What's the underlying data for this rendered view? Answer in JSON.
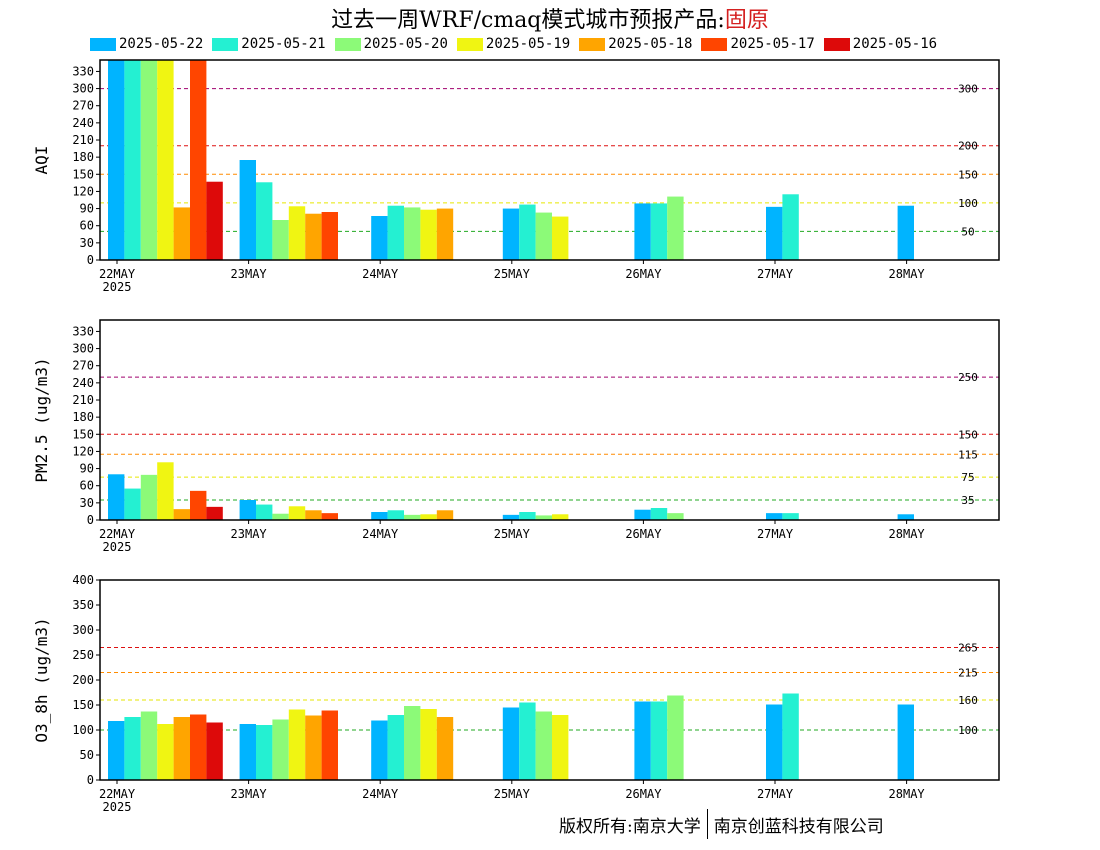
{
  "title": {
    "text": "过去一周WRF/cmaq模式城市预报产品:",
    "location": "固原",
    "location_color": "#d42020"
  },
  "footer": {
    "left": "版权所有:南京大学",
    "right": "南京创蓝科技有限公司"
  },
  "chart_data": [
    {
      "type": "bar",
      "ylabel": "AQI",
      "ylim": [
        0,
        350
      ],
      "yticks": [
        0,
        30,
        60,
        90,
        120,
        150,
        180,
        210,
        240,
        270,
        300,
        330
      ],
      "categories": [
        "22MAY",
        "23MAY",
        "24MAY",
        "25MAY",
        "26MAY",
        "27MAY",
        "28MAY"
      ],
      "first_category_sublabel": "2025",
      "thresholds": [
        {
          "value": 50,
          "label": "50",
          "color": "#22aa22"
        },
        {
          "value": 100,
          "label": "100",
          "color": "#e6e600"
        },
        {
          "value": 150,
          "label": "150",
          "color": "#ff8c00"
        },
        {
          "value": 200,
          "label": "200",
          "color": "#dd1111"
        },
        {
          "value": 300,
          "label": "300",
          "color": "#a0006e"
        }
      ],
      "series": [
        {
          "name": "2025-05-22",
          "color": "#00b4ff",
          "values": [
            350,
            175,
            77,
            90,
            99,
            93,
            95
          ]
        },
        {
          "name": "2025-05-21",
          "color": "#24f0d2",
          "values": [
            350,
            136,
            95,
            97,
            99,
            115,
            null
          ]
        },
        {
          "name": "2025-05-20",
          "color": "#8cfa78",
          "values": [
            350,
            70,
            92,
            83,
            111,
            null,
            null
          ]
        },
        {
          "name": "2025-05-19",
          "color": "#f0f512",
          "values": [
            350,
            94,
            88,
            76,
            null,
            null,
            null
          ]
        },
        {
          "name": "2025-05-18",
          "color": "#ffa500",
          "values": [
            92,
            81,
            90,
            null,
            null,
            null,
            null
          ]
        },
        {
          "name": "2025-05-17",
          "color": "#ff4500",
          "values": [
            350,
            84,
            null,
            null,
            null,
            null,
            null
          ]
        },
        {
          "name": "2025-05-16",
          "color": "#dd0a0a",
          "values": [
            137,
            null,
            null,
            null,
            null,
            null,
            null
          ]
        }
      ]
    },
    {
      "type": "bar",
      "ylabel": "PM2.5 (ug/m3)",
      "ylim": [
        0,
        350
      ],
      "yticks": [
        0,
        30,
        60,
        90,
        120,
        150,
        180,
        210,
        240,
        270,
        300,
        330
      ],
      "categories": [
        "22MAY",
        "23MAY",
        "24MAY",
        "25MAY",
        "26MAY",
        "27MAY",
        "28MAY"
      ],
      "first_category_sublabel": "2025",
      "thresholds": [
        {
          "value": 35,
          "label": "35",
          "color": "#22aa22"
        },
        {
          "value": 75,
          "label": "75",
          "color": "#e6e600"
        },
        {
          "value": 115,
          "label": "115",
          "color": "#ff8c00"
        },
        {
          "value": 150,
          "label": "150",
          "color": "#dd1111"
        },
        {
          "value": 250,
          "label": "250",
          "color": "#a0006e"
        }
      ],
      "series": [
        {
          "name": "2025-05-22",
          "color": "#00b4ff",
          "values": [
            80,
            35,
            14,
            9,
            18,
            12,
            10
          ]
        },
        {
          "name": "2025-05-21",
          "color": "#24f0d2",
          "values": [
            55,
            27,
            17,
            14,
            21,
            12,
            null
          ]
        },
        {
          "name": "2025-05-20",
          "color": "#8cfa78",
          "values": [
            79,
            11,
            9,
            8,
            12,
            null,
            null
          ]
        },
        {
          "name": "2025-05-19",
          "color": "#f0f512",
          "values": [
            101,
            24,
            10,
            10,
            null,
            null,
            null
          ]
        },
        {
          "name": "2025-05-18",
          "color": "#ffa500",
          "values": [
            19,
            17,
            17,
            null,
            null,
            null,
            null
          ]
        },
        {
          "name": "2025-05-17",
          "color": "#ff4500",
          "values": [
            51,
            12,
            null,
            null,
            null,
            null,
            null
          ]
        },
        {
          "name": "2025-05-16",
          "color": "#dd0a0a",
          "values": [
            23,
            null,
            null,
            null,
            null,
            null,
            null
          ]
        }
      ]
    },
    {
      "type": "bar",
      "ylabel": "O3_8h (ug/m3)",
      "ylim": [
        0,
        400
      ],
      "yticks": [
        0,
        50,
        100,
        150,
        200,
        250,
        300,
        350,
        400
      ],
      "categories": [
        "22MAY",
        "23MAY",
        "24MAY",
        "25MAY",
        "26MAY",
        "27MAY",
        "28MAY"
      ],
      "first_category_sublabel": "2025",
      "thresholds": [
        {
          "value": 100,
          "label": "100",
          "color": "#22aa22"
        },
        {
          "value": 160,
          "label": "160",
          "color": "#e6e600"
        },
        {
          "value": 215,
          "label": "215",
          "color": "#ff8c00"
        },
        {
          "value": 265,
          "label": "265",
          "color": "#dd1111"
        }
      ],
      "series": [
        {
          "name": "2025-05-22",
          "color": "#00b4ff",
          "values": [
            118,
            112,
            119,
            145,
            157,
            151,
            151
          ]
        },
        {
          "name": "2025-05-21",
          "color": "#24f0d2",
          "values": [
            126,
            110,
            130,
            155,
            157,
            173,
            null
          ]
        },
        {
          "name": "2025-05-20",
          "color": "#8cfa78",
          "values": [
            137,
            121,
            148,
            137,
            169,
            null,
            null
          ]
        },
        {
          "name": "2025-05-19",
          "color": "#f0f512",
          "values": [
            112,
            141,
            142,
            130,
            null,
            null,
            null
          ]
        },
        {
          "name": "2025-05-18",
          "color": "#ffa500",
          "values": [
            126,
            129,
            126,
            null,
            null,
            null,
            null
          ]
        },
        {
          "name": "2025-05-17",
          "color": "#ff4500",
          "values": [
            131,
            139,
            null,
            null,
            null,
            null,
            null
          ]
        },
        {
          "name": "2025-05-16",
          "color": "#dd0a0a",
          "values": [
            115,
            null,
            null,
            null,
            null,
            null,
            null
          ]
        }
      ]
    }
  ]
}
